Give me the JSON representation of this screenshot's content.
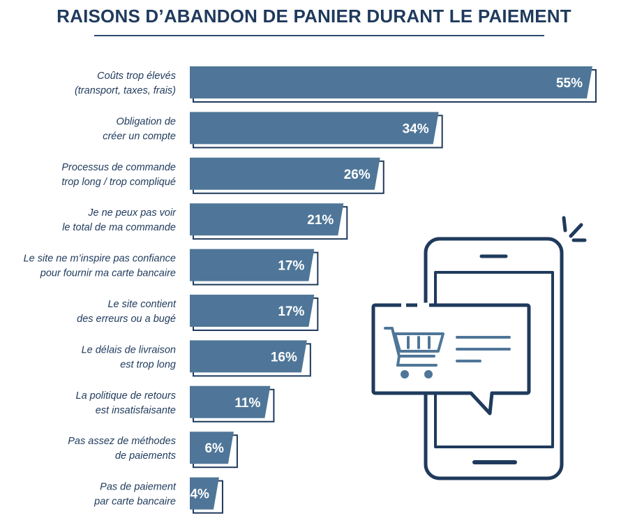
{
  "title": "RAISONS D’ABANDON DE PANIER DURANT LE PAIEMENT",
  "colors": {
    "bar": "#4f7698",
    "outline": "#1f3a5c",
    "text": "#1f3a5c",
    "value_text": "#ffffff"
  },
  "chart_data": {
    "type": "bar",
    "orientation": "horizontal",
    "title": "RAISONS D’ABANDON DE PANIER DURANT LE PAIEMENT",
    "categories": [
      [
        "Coûts trop élevés",
        "(transport, taxes, frais)"
      ],
      [
        "Obligation de",
        "créer un compte"
      ],
      [
        "Processus de commande",
        "trop long / trop compliqué"
      ],
      [
        "Je ne peux pas voir",
        "le total de ma commande"
      ],
      [
        "Le site ne m’inspire pas confiance",
        "pour fournir ma carte bancaire"
      ],
      [
        "Le site contient",
        "des erreurs ou a bugé"
      ],
      [
        "Le délais de livraison",
        "est trop long"
      ],
      [
        "La politique de retours",
        "est insatisfaisante"
      ],
      [
        "Pas assez de méthodes",
        "de paiements"
      ],
      [
        "Pas de paiement",
        "par carte bancaire"
      ]
    ],
    "values": [
      55,
      34,
      26,
      21,
      17,
      17,
      16,
      11,
      6,
      4
    ],
    "value_labels": [
      "55%",
      "34%",
      "26%",
      "21%",
      "17%",
      "17%",
      "16%",
      "11%",
      "6%",
      "4%"
    ],
    "value_unit": "%",
    "xlim": [
      0,
      55
    ],
    "grid": false,
    "legend": "none"
  },
  "illustration": {
    "icons": [
      "smartphone-icon",
      "shopping-cart-icon",
      "chat-bubble-icon",
      "notification-rays-icon"
    ]
  }
}
